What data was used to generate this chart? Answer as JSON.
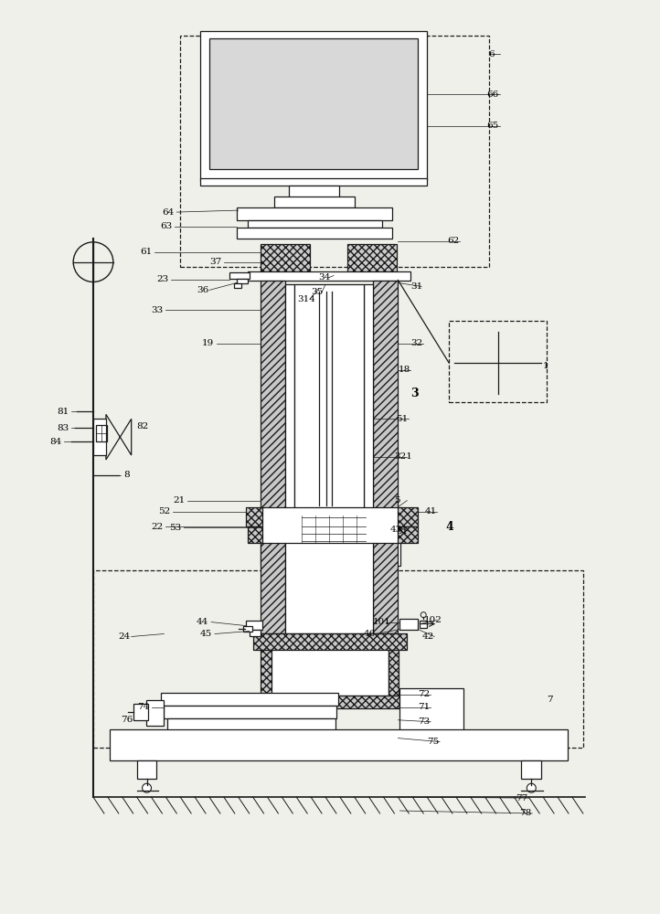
{
  "bg_color": "#f0f0eb",
  "line_color": "#1a1a1a",
  "fig_width": 7.22,
  "fig_height": 10.0
}
